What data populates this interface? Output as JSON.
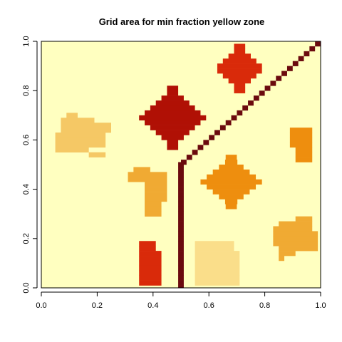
{
  "chart_data": {
    "type": "heatmap",
    "title": "Grid area for min fraction yellow zone",
    "xlabel": "",
    "ylabel": "",
    "xlim": [
      0,
      1
    ],
    "ylim": [
      0,
      1
    ],
    "grid_cells": 50,
    "background_color": "#FFFFC0",
    "x_ticks": [
      {
        "value": 0.0,
        "label": "0.0"
      },
      {
        "value": 0.2,
        "label": "0.2"
      },
      {
        "value": 0.4,
        "label": "0.4"
      },
      {
        "value": 0.6,
        "label": "0.6"
      },
      {
        "value": 0.8,
        "label": "0.8"
      },
      {
        "value": 1.0,
        "label": "1.0"
      }
    ],
    "y_ticks": [
      {
        "value": 0.0,
        "label": "0.0"
      },
      {
        "value": 0.2,
        "label": "0.2"
      },
      {
        "value": 0.4,
        "label": "0.4"
      },
      {
        "value": 0.6,
        "label": "0.6"
      },
      {
        "value": 0.8,
        "label": "0.8"
      },
      {
        "value": 1.0,
        "label": "1.0"
      }
    ],
    "regions": [
      {
        "id": "blob-upper-left",
        "color": "#F5C865",
        "shape": "cells",
        "rows": [
          {
            "y": 0.7,
            "x0": 0.09,
            "x1": 0.13
          },
          {
            "y": 0.68,
            "x0": 0.07,
            "x1": 0.19
          },
          {
            "y": 0.66,
            "x0": 0.07,
            "x1": 0.25
          },
          {
            "y": 0.64,
            "x0": 0.07,
            "x1": 0.25
          },
          {
            "y": 0.62,
            "x0": 0.05,
            "x1": 0.23
          },
          {
            "y": 0.6,
            "x0": 0.05,
            "x1": 0.23
          },
          {
            "y": 0.58,
            "x0": 0.05,
            "x1": 0.23
          },
          {
            "y": 0.56,
            "x0": 0.05,
            "x1": 0.17
          },
          {
            "y": 0.54,
            "x0": 0.17,
            "x1": 0.23
          }
        ]
      },
      {
        "id": "diamond-dark-red",
        "color": "#B01005",
        "shape": "diamond",
        "cx": 0.47,
        "cy": 0.69,
        "rx": 0.12,
        "ry": 0.12
      },
      {
        "id": "diamond-red-top",
        "color": "#D92A0A",
        "shape": "diamond",
        "cx": 0.71,
        "cy": 0.89,
        "rx": 0.09,
        "ry": 0.09
      },
      {
        "id": "diamond-orange",
        "color": "#EE8E0E",
        "shape": "diamond",
        "cx": 0.68,
        "cy": 0.43,
        "rx": 0.11,
        "ry": 0.1
      },
      {
        "id": "block-l-orange",
        "color": "#F0AA33",
        "shape": "cells",
        "rows": [
          {
            "y": 0.48,
            "x0": 0.33,
            "x1": 0.39
          },
          {
            "y": 0.46,
            "x0": 0.31,
            "x1": 0.45
          },
          {
            "y": 0.44,
            "x0": 0.31,
            "x1": 0.45
          },
          {
            "y": 0.42,
            "x0": 0.37,
            "x1": 0.45
          },
          {
            "y": 0.4,
            "x0": 0.37,
            "x1": 0.45
          },
          {
            "y": 0.38,
            "x0": 0.37,
            "x1": 0.45
          },
          {
            "y": 0.36,
            "x0": 0.37,
            "x1": 0.45
          },
          {
            "y": 0.34,
            "x0": 0.37,
            "x1": 0.43
          },
          {
            "y": 0.32,
            "x0": 0.37,
            "x1": 0.43
          },
          {
            "y": 0.3,
            "x0": 0.37,
            "x1": 0.43
          }
        ]
      },
      {
        "id": "block-orange-right",
        "color": "#EE8E0E",
        "shape": "cells",
        "rows": [
          {
            "y": 0.64,
            "x0": 0.89,
            "x1": 0.97
          },
          {
            "y": 0.62,
            "x0": 0.89,
            "x1": 0.97
          },
          {
            "y": 0.6,
            "x0": 0.89,
            "x1": 0.97
          },
          {
            "y": 0.58,
            "x0": 0.89,
            "x1": 0.97
          },
          {
            "y": 0.56,
            "x0": 0.91,
            "x1": 0.97
          },
          {
            "y": 0.54,
            "x0": 0.91,
            "x1": 0.97
          },
          {
            "y": 0.52,
            "x0": 0.91,
            "x1": 0.97
          }
        ]
      },
      {
        "id": "blob-lower-right",
        "color": "#F0AA33",
        "shape": "cells",
        "rows": [
          {
            "y": 0.28,
            "x0": 0.91,
            "x1": 0.97
          },
          {
            "y": 0.26,
            "x0": 0.85,
            "x1": 0.97
          },
          {
            "y": 0.24,
            "x0": 0.83,
            "x1": 0.97
          },
          {
            "y": 0.22,
            "x0": 0.83,
            "x1": 0.99
          },
          {
            "y": 0.2,
            "x0": 0.83,
            "x1": 0.99
          },
          {
            "y": 0.18,
            "x0": 0.83,
            "x1": 0.99
          },
          {
            "y": 0.16,
            "x0": 0.85,
            "x1": 0.99
          },
          {
            "y": 0.14,
            "x0": 0.85,
            "x1": 0.91
          },
          {
            "y": 0.12,
            "x0": 0.85,
            "x1": 0.87
          }
        ]
      },
      {
        "id": "block-red-lower",
        "color": "#D92A0A",
        "shape": "cells",
        "rows": [
          {
            "y": 0.18,
            "x0": 0.35,
            "x1": 0.41
          },
          {
            "y": 0.16,
            "x0": 0.35,
            "x1": 0.41
          },
          {
            "y": 0.14,
            "x0": 0.35,
            "x1": 0.43
          },
          {
            "y": 0.12,
            "x0": 0.35,
            "x1": 0.43
          },
          {
            "y": 0.1,
            "x0": 0.35,
            "x1": 0.43
          },
          {
            "y": 0.08,
            "x0": 0.35,
            "x1": 0.43
          },
          {
            "y": 0.06,
            "x0": 0.35,
            "x1": 0.43
          },
          {
            "y": 0.04,
            "x0": 0.35,
            "x1": 0.43
          },
          {
            "y": 0.02,
            "x0": 0.35,
            "x1": 0.43
          }
        ]
      },
      {
        "id": "block-pale-lower",
        "color": "#FADE8A",
        "shape": "cells",
        "rows": [
          {
            "y": 0.18,
            "x0": 0.55,
            "x1": 0.69
          },
          {
            "y": 0.16,
            "x0": 0.55,
            "x1": 0.69
          },
          {
            "y": 0.14,
            "x0": 0.55,
            "x1": 0.71
          },
          {
            "y": 0.12,
            "x0": 0.55,
            "x1": 0.71
          },
          {
            "y": 0.1,
            "x0": 0.55,
            "x1": 0.71
          },
          {
            "y": 0.08,
            "x0": 0.55,
            "x1": 0.71
          },
          {
            "y": 0.06,
            "x0": 0.55,
            "x1": 0.71
          },
          {
            "y": 0.04,
            "x0": 0.55,
            "x1": 0.71
          },
          {
            "y": 0.02,
            "x0": 0.55,
            "x1": 0.71
          }
        ]
      },
      {
        "id": "vertical-line",
        "color": "#6B0A0E",
        "shape": "cells",
        "rows": [
          {
            "y": 0.5,
            "x0": 0.49,
            "x1": 0.51
          },
          {
            "y": 0.48,
            "x0": 0.49,
            "x1": 0.51
          },
          {
            "y": 0.46,
            "x0": 0.49,
            "x1": 0.51
          },
          {
            "y": 0.44,
            "x0": 0.49,
            "x1": 0.51
          },
          {
            "y": 0.42,
            "x0": 0.49,
            "x1": 0.51
          },
          {
            "y": 0.4,
            "x0": 0.49,
            "x1": 0.51
          },
          {
            "y": 0.38,
            "x0": 0.49,
            "x1": 0.51
          },
          {
            "y": 0.36,
            "x0": 0.49,
            "x1": 0.51
          },
          {
            "y": 0.34,
            "x0": 0.49,
            "x1": 0.51
          },
          {
            "y": 0.32,
            "x0": 0.49,
            "x1": 0.51
          },
          {
            "y": 0.3,
            "x0": 0.49,
            "x1": 0.51
          },
          {
            "y": 0.28,
            "x0": 0.49,
            "x1": 0.51
          },
          {
            "y": 0.26,
            "x0": 0.49,
            "x1": 0.51
          },
          {
            "y": 0.24,
            "x0": 0.49,
            "x1": 0.51
          },
          {
            "y": 0.22,
            "x0": 0.49,
            "x1": 0.51
          },
          {
            "y": 0.2,
            "x0": 0.49,
            "x1": 0.51
          },
          {
            "y": 0.18,
            "x0": 0.49,
            "x1": 0.51
          },
          {
            "y": 0.16,
            "x0": 0.49,
            "x1": 0.51
          },
          {
            "y": 0.14,
            "x0": 0.49,
            "x1": 0.51
          },
          {
            "y": 0.12,
            "x0": 0.49,
            "x1": 0.51
          },
          {
            "y": 0.1,
            "x0": 0.49,
            "x1": 0.51
          },
          {
            "y": 0.08,
            "x0": 0.49,
            "x1": 0.51
          },
          {
            "y": 0.06,
            "x0": 0.49,
            "x1": 0.51
          },
          {
            "y": 0.04,
            "x0": 0.49,
            "x1": 0.51
          },
          {
            "y": 0.02,
            "x0": 0.49,
            "x1": 0.51
          },
          {
            "y": 0.0,
            "x0": 0.49,
            "x1": 0.51
          }
        ]
      },
      {
        "id": "diagonal-line",
        "color": "#6B0A0E",
        "shape": "diagonal",
        "from": [
          0.51,
          0.51
        ],
        "to": [
          0.99,
          0.99
        ],
        "step": 0.02
      }
    ]
  }
}
